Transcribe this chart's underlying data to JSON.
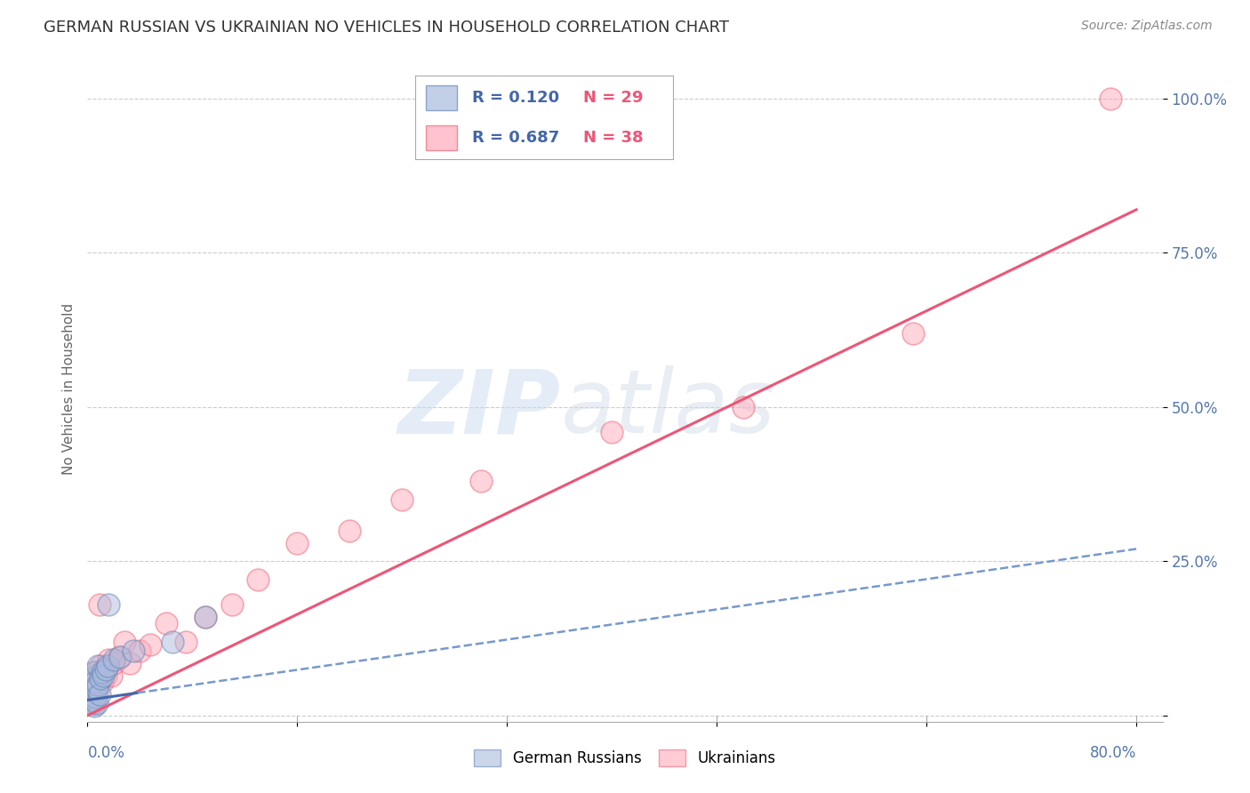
{
  "title": "GERMAN RUSSIAN VS UKRAINIAN NO VEHICLES IN HOUSEHOLD CORRELATION CHART",
  "source": "Source: ZipAtlas.com",
  "ylabel": "No Vehicles in Household",
  "yticks": [
    0.0,
    0.25,
    0.5,
    0.75,
    1.0
  ],
  "ytick_labels": [
    "",
    "25.0%",
    "50.0%",
    "75.0%",
    "100.0%"
  ],
  "xticks": [
    0.0,
    0.16,
    0.32,
    0.48,
    0.64,
    0.8
  ],
  "xlim": [
    0.0,
    0.82
  ],
  "ylim": [
    -0.01,
    1.07
  ],
  "legend_r1": "R = 0.120",
  "legend_n1": "N = 29",
  "legend_r2": "R = 0.687",
  "legend_n2": "N = 38",
  "watermark_zip": "ZIP",
  "watermark_atlas": "atlas",
  "bg_color": "#ffffff",
  "grid_color": "#cccccc",
  "blue_scatter_color": "#aabbdd",
  "blue_scatter_edge": "#6688bb",
  "pink_scatter_color": "#ffaabb",
  "pink_scatter_edge": "#ee6677",
  "blue_line_color": "#4466aa",
  "pink_line_color": "#ee5577",
  "blue_dash_color": "#7799cc",
  "gr_line_x0": 0.0,
  "gr_line_y0": 0.025,
  "gr_line_x1": 0.8,
  "gr_line_y1": 0.27,
  "ukr_line_x0": 0.0,
  "ukr_line_y0": 0.0,
  "ukr_line_x1": 0.8,
  "ukr_line_y1": 0.82,
  "german_russian_x": [
    0.001,
    0.002,
    0.002,
    0.002,
    0.003,
    0.003,
    0.004,
    0.004,
    0.005,
    0.005,
    0.005,
    0.006,
    0.006,
    0.007,
    0.007,
    0.008,
    0.008,
    0.009,
    0.01,
    0.011,
    0.012,
    0.014,
    0.015,
    0.016,
    0.02,
    0.025,
    0.035,
    0.065,
    0.09
  ],
  "german_russian_y": [
    0.02,
    0.03,
    0.04,
    0.05,
    0.02,
    0.035,
    0.025,
    0.06,
    0.015,
    0.04,
    0.07,
    0.03,
    0.055,
    0.02,
    0.045,
    0.05,
    0.08,
    0.035,
    0.06,
    0.07,
    0.065,
    0.075,
    0.08,
    0.18,
    0.09,
    0.095,
    0.105,
    0.12,
    0.16
  ],
  "ukrainian_x": [
    0.001,
    0.002,
    0.002,
    0.003,
    0.003,
    0.004,
    0.004,
    0.005,
    0.005,
    0.006,
    0.007,
    0.008,
    0.009,
    0.01,
    0.011,
    0.012,
    0.014,
    0.016,
    0.018,
    0.02,
    0.024,
    0.028,
    0.032,
    0.04,
    0.048,
    0.06,
    0.075,
    0.09,
    0.11,
    0.13,
    0.16,
    0.2,
    0.24,
    0.3,
    0.4,
    0.5,
    0.63,
    0.78
  ],
  "ukrainian_y": [
    0.03,
    0.02,
    0.05,
    0.04,
    0.065,
    0.03,
    0.055,
    0.02,
    0.07,
    0.045,
    0.035,
    0.06,
    0.18,
    0.08,
    0.055,
    0.075,
    0.065,
    0.09,
    0.065,
    0.085,
    0.095,
    0.12,
    0.085,
    0.105,
    0.115,
    0.15,
    0.12,
    0.16,
    0.18,
    0.22,
    0.28,
    0.3,
    0.35,
    0.38,
    0.46,
    0.5,
    0.62,
    1.0
  ]
}
